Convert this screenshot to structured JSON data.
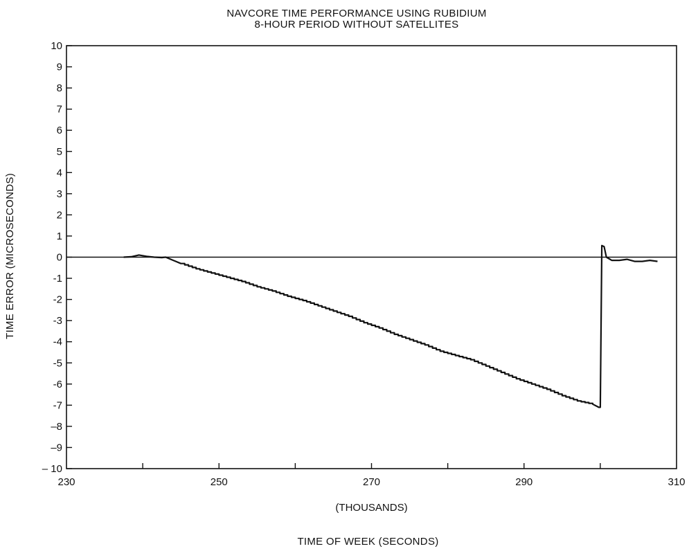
{
  "chart_data": {
    "type": "line",
    "title": "NAVCORE TIME PERFORMANCE USING RUBIDIUM",
    "subtitle": "8-HOUR PERIOD WITHOUT SATELLITES",
    "ylabel": "TIME ERROR (MICROSECONDS)",
    "xunit": "(THOUSANDS)",
    "xlabel": "TIME OF WEEK (SECONDS)",
    "xlim": [
      230,
      310
    ],
    "ylim": [
      -10,
      10
    ],
    "x_ticks": [
      230,
      250,
      270,
      290,
      310
    ],
    "y_ticks": [
      10,
      9,
      8,
      7,
      6,
      5,
      4,
      3,
      2,
      1,
      0,
      -1,
      -2,
      -3,
      -4,
      -5,
      -6,
      -7,
      -8,
      -9,
      -10
    ],
    "y_tick_labels": [
      "10",
      "9",
      "8",
      "7",
      "6",
      "5",
      "4",
      "3",
      "2",
      "1",
      "0",
      "-1",
      "-2",
      "-3",
      "-4",
      "-5",
      "-6",
      "-7",
      "–8",
      "–9",
      "– 10"
    ],
    "reference_line": 0,
    "series": [
      {
        "values": [
          [
            237.5,
            0.0
          ],
          [
            238.5,
            0.02
          ],
          [
            239.5,
            0.1
          ],
          [
            240.5,
            0.04
          ],
          [
            241.5,
            0.0
          ],
          [
            242.5,
            -0.02
          ],
          [
            243.0,
            0.0
          ],
          [
            244.0,
            -0.15
          ],
          [
            245.0,
            -0.3
          ],
          [
            247.0,
            -0.55
          ],
          [
            249.0,
            -0.75
          ],
          [
            251.0,
            -0.95
          ],
          [
            253.0,
            -1.15
          ],
          [
            255.0,
            -1.4
          ],
          [
            257.0,
            -1.6
          ],
          [
            259.0,
            -1.85
          ],
          [
            261.0,
            -2.05
          ],
          [
            263.0,
            -2.3
          ],
          [
            265.0,
            -2.55
          ],
          [
            267.0,
            -2.8
          ],
          [
            269.0,
            -3.1
          ],
          [
            271.0,
            -3.35
          ],
          [
            273.0,
            -3.65
          ],
          [
            275.0,
            -3.9
          ],
          [
            277.0,
            -4.15
          ],
          [
            279.0,
            -4.45
          ],
          [
            281.0,
            -4.65
          ],
          [
            283.0,
            -4.85
          ],
          [
            285.0,
            -5.15
          ],
          [
            287.0,
            -5.45
          ],
          [
            289.0,
            -5.75
          ],
          [
            291.0,
            -6.0
          ],
          [
            293.0,
            -6.25
          ],
          [
            295.0,
            -6.55
          ],
          [
            297.0,
            -6.8
          ],
          [
            299.0,
            -6.95
          ],
          [
            299.8,
            -7.1
          ],
          [
            300.0,
            -7.1
          ],
          [
            300.2,
            0.55
          ],
          [
            300.5,
            0.5
          ],
          [
            300.8,
            0.0
          ],
          [
            301.5,
            -0.15
          ],
          [
            302.5,
            -0.15
          ],
          [
            303.5,
            -0.1
          ],
          [
            304.5,
            -0.2
          ],
          [
            305.5,
            -0.2
          ],
          [
            306.5,
            -0.15
          ],
          [
            307.5,
            -0.2
          ]
        ]
      }
    ]
  }
}
